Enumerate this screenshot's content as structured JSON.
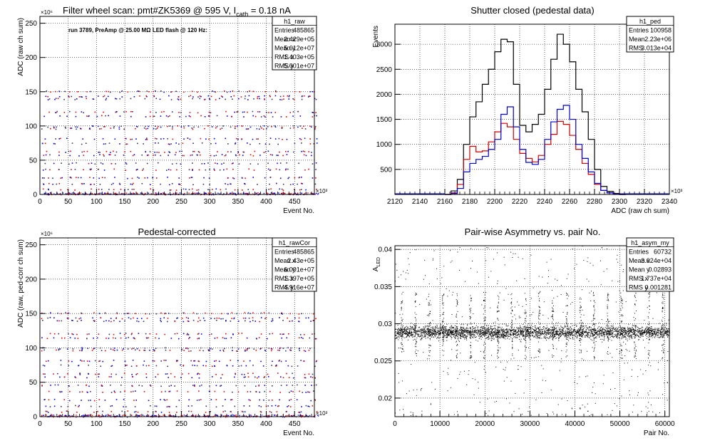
{
  "pads": [
    {
      "id": "raw",
      "title": "Filter wheel scan: pmt#ZK5369 @   595 V, I",
      "title_sub": "cath",
      "title_tail": " = 0.18 nA",
      "xlabel": "Event No.",
      "ylabel": "ADC (raw ch sum)",
      "x_exponent": "×10³",
      "y_exponent": "×10⁶",
      "annotation": "run 3789, PreAmp @ 25.00 MΩ LED flash @  120 Hz:",
      "stats": {
        "name": "h1_raw",
        "rows": [
          [
            "Entries",
            "485865"
          ],
          [
            "Mean x",
            "2.429e+05"
          ],
          [
            "Mean y",
            "5.612e+07"
          ],
          [
            "RMS x",
            "1.403e+05"
          ],
          [
            "RMS y",
            "5.001e+07"
          ]
        ]
      }
    },
    {
      "id": "ped",
      "title": "Shutter closed (pedestal data)",
      "xlabel": "ADC (raw ch sum)",
      "ylabel": "Events",
      "x_exponent": "×10³",
      "stats": {
        "name": "h1_ped",
        "rows": [
          [
            "Entries",
            "100958"
          ],
          [
            "Mean",
            "2.23e+06"
          ],
          [
            "RMS",
            "3.013e+04"
          ]
        ]
      }
    },
    {
      "id": "cor",
      "title": "Pedestal-corrected",
      "xlabel": "Event No.",
      "ylabel": "ADC (raw, ped-corr ch sum)",
      "x_exponent": "×10³",
      "y_exponent": "×10⁶",
      "stats": {
        "name": "h1_rawCor",
        "rows": [
          [
            "Entries",
            "485865"
          ],
          [
            "Mean x",
            "2.43e+05"
          ],
          [
            "Mean y",
            "6.001e+07"
          ],
          [
            "RMS x",
            "1.397e+05"
          ],
          [
            "RMS y",
            "4.916e+07"
          ]
        ]
      }
    },
    {
      "id": "asym",
      "title": "Pair-wise Asymmetry vs. pair No.",
      "xlabel": "Pair No.",
      "ylabel": "A",
      "ylabel_sub": "LED",
      "stats": {
        "name": "h1_asym_my",
        "rows": [
          [
            "Entries",
            "60732"
          ],
          [
            "Mean x",
            "3.024e+04"
          ],
          [
            "Mean y",
            "0.02893"
          ],
          [
            "RMS x",
            "1.737e+04"
          ],
          [
            "RMS y",
            "0.001281"
          ]
        ]
      }
    }
  ],
  "chart_data": [
    {
      "type": "scatter",
      "id": "raw",
      "xlim": [
        0,
        485
      ],
      "ylim": [
        0,
        260
      ],
      "xticks": [
        0,
        50,
        100,
        150,
        200,
        250,
        300,
        350,
        400,
        450
      ],
      "yticks": [
        0,
        50,
        100,
        150,
        200,
        250
      ],
      "grid": true,
      "step_period": 19.6,
      "levels": [
        2,
        8,
        16,
        25,
        37,
        46,
        58,
        63,
        75,
        82,
        97,
        100,
        115,
        121,
        140,
        144,
        151
      ],
      "series_colors": [
        "#0000ee",
        "#ee0000",
        "#333366"
      ]
    },
    {
      "type": "line",
      "id": "ped",
      "xlim": [
        2120,
        2340
      ],
      "ylim": [
        0,
        3400
      ],
      "xticks": [
        2120,
        2140,
        2160,
        2180,
        2200,
        2220,
        2240,
        2260,
        2280,
        2300,
        2320,
        2340
      ],
      "yticks": [
        500,
        1000,
        1500,
        2000,
        2500,
        3000
      ],
      "grid": true,
      "series": [
        {
          "color": "#000000",
          "x": [
            2160,
            2165,
            2170,
            2175,
            2180,
            2185,
            2190,
            2195,
            2200,
            2205,
            2210,
            2215,
            2220,
            2225,
            2230,
            2235,
            2240,
            2245,
            2250,
            2255,
            2260,
            2265,
            2270,
            2275,
            2280,
            2285,
            2290,
            2295,
            2300
          ],
          "y": [
            0,
            70,
            300,
            1000,
            1550,
            1850,
            2200,
            2500,
            2850,
            3100,
            3050,
            2200,
            1380,
            1250,
            1400,
            1600,
            2100,
            2700,
            3200,
            3000,
            2650,
            2100,
            1650,
            1100,
            500,
            160,
            60,
            20,
            0
          ]
        },
        {
          "color": "#cc0000",
          "x": [
            2160,
            2165,
            2170,
            2175,
            2180,
            2185,
            2190,
            2195,
            2200,
            2205,
            2210,
            2215,
            2220,
            2225,
            2230,
            2235,
            2240,
            2245,
            2250,
            2255,
            2260,
            2265,
            2270,
            2275,
            2280,
            2285,
            2290,
            2295,
            2300
          ],
          "y": [
            0,
            30,
            200,
            700,
            960,
            850,
            870,
            1050,
            1250,
            1420,
            1350,
            1100,
            820,
            720,
            650,
            780,
            1000,
            1200,
            1460,
            1400,
            1180,
            900,
            620,
            400,
            200,
            80,
            30,
            10,
            0
          ]
        },
        {
          "color": "#0000cc",
          "x": [
            2160,
            2165,
            2170,
            2175,
            2180,
            2185,
            2190,
            2195,
            2200,
            2205,
            2210,
            2215,
            2220,
            2225,
            2230,
            2235,
            2240,
            2245,
            2250,
            2255,
            2260,
            2265,
            2270,
            2275,
            2280,
            2285,
            2290,
            2295,
            2300
          ],
          "y": [
            0,
            20,
            120,
            450,
            620,
            700,
            760,
            900,
            1100,
            1600,
            1750,
            1350,
            900,
            640,
            600,
            700,
            1100,
            1450,
            1700,
            1780,
            1500,
            1000,
            720,
            450,
            220,
            80,
            30,
            10,
            0
          ]
        }
      ]
    },
    {
      "type": "scatter",
      "id": "cor",
      "xlim": [
        0,
        485
      ],
      "ylim": [
        0,
        260
      ],
      "xticks": [
        0,
        50,
        100,
        150,
        200,
        250,
        300,
        350,
        400,
        450
      ],
      "yticks": [
        0,
        50,
        100,
        150,
        200,
        250
      ],
      "grid": true,
      "step_period": 19.6,
      "levels": [
        2,
        8,
        16,
        25,
        37,
        46,
        58,
        63,
        75,
        82,
        97,
        100,
        115,
        121,
        140,
        144,
        151
      ],
      "series_colors": [
        "#0000ee",
        "#ee0000",
        "#333366"
      ]
    },
    {
      "type": "scatter",
      "id": "asym",
      "xlim": [
        0,
        61000
      ],
      "ylim": [
        0.0175,
        0.0405
      ],
      "xticks": [
        0,
        10000,
        20000,
        30000,
        40000,
        50000,
        60000
      ],
      "yticks": [
        0.02,
        0.025,
        0.03,
        0.035,
        0.04
      ],
      "grid": true,
      "band_center": 0.0289,
      "band_spread": 0.0007,
      "spike_period": 3050,
      "series_colors": [
        "#000000"
      ]
    }
  ]
}
